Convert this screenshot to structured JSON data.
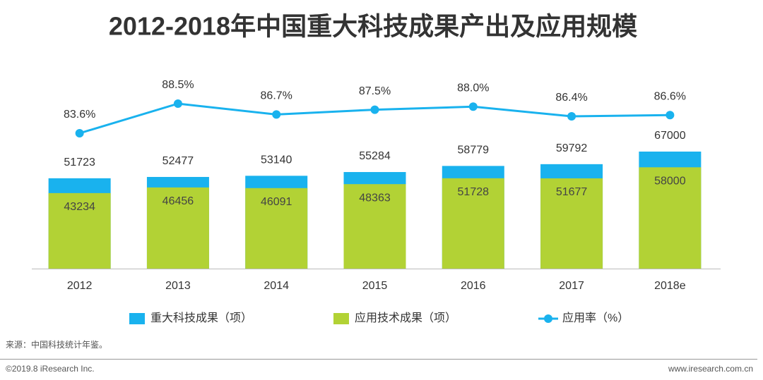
{
  "chart_data": {
    "type": "bar-line",
    "title": "2012-2018年中国重大科技成果产出及应用规模",
    "categories": [
      "2012",
      "2013",
      "2014",
      "2015",
      "2016",
      "2017",
      "2018e"
    ],
    "series": [
      {
        "name": "重大科技成果（项）",
        "color": "#19b2ee",
        "values": [
          51723,
          52477,
          53140,
          55284,
          58779,
          59792,
          67000
        ]
      },
      {
        "name": "应用技术成果（项）",
        "color": "#b2d235",
        "values": [
          43234,
          46456,
          46091,
          48363,
          51728,
          51677,
          58000
        ]
      },
      {
        "name": "应用率（%）",
        "color": "#19b2ee",
        "axis": "y2",
        "values": [
          83.6,
          88.5,
          86.7,
          87.5,
          88.0,
          86.4,
          86.6
        ],
        "value_labels": [
          "83.6%",
          "88.5%",
          "86.7%",
          "87.5%",
          "88.0%",
          "86.4%",
          "86.6%"
        ]
      }
    ],
    "source": "来源：中国科技统计年鉴。",
    "copyright": "©2019.8 iResearch Inc.",
    "website": "www.iresearch.com.cn"
  }
}
